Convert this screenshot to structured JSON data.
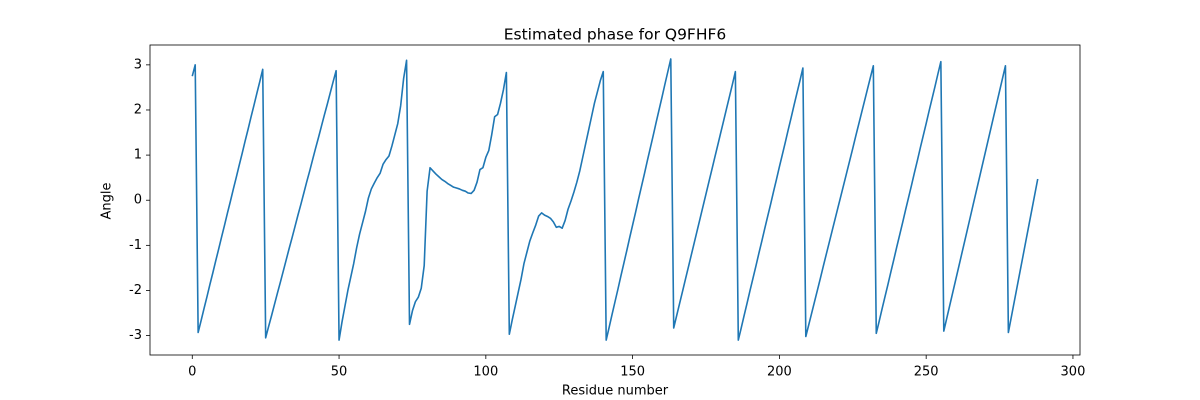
{
  "chart_data": {
    "type": "line",
    "title": "Estimated phase for Q9FHF6",
    "x_label": "Residue number",
    "y_label": "Angle",
    "color": "#1f77b4",
    "x": [
      0,
      1,
      2,
      3,
      4,
      5,
      6,
      7,
      8,
      9,
      10,
      11,
      12,
      13,
      14,
      15,
      16,
      17,
      18,
      19,
      20,
      21,
      22,
      23,
      24,
      25,
      26,
      27,
      28,
      29,
      30,
      31,
      32,
      33,
      34,
      35,
      36,
      37,
      38,
      39,
      40,
      41,
      42,
      43,
      44,
      45,
      46,
      47,
      48,
      49,
      50,
      51,
      52,
      53,
      54,
      55,
      56,
      57,
      58,
      59,
      60,
      61,
      62,
      63,
      64,
      65,
      66,
      67,
      68,
      69,
      70,
      71,
      72,
      73,
      74,
      75,
      76,
      77,
      78,
      79,
      80,
      81,
      82,
      83,
      84,
      85,
      86,
      87,
      88,
      89,
      90,
      91,
      92,
      93,
      94,
      95,
      96,
      97,
      98,
      99,
      100,
      101,
      102,
      103,
      104,
      105,
      106,
      107,
      108,
      109,
      110,
      111,
      112,
      113,
      114,
      115,
      116,
      117,
      118,
      119,
      120,
      121,
      122,
      123,
      124,
      125,
      126,
      127,
      128,
      129,
      130,
      131,
      132,
      133,
      134,
      135,
      136,
      137,
      138,
      139,
      140,
      141,
      142,
      143,
      144,
      145,
      146,
      147,
      148,
      149,
      150,
      151,
      152,
      153,
      154,
      155,
      156,
      157,
      158,
      159,
      160,
      161,
      162,
      163,
      164,
      165,
      166,
      167,
      168,
      169,
      170,
      171,
      172,
      173,
      174,
      175,
      176,
      177,
      178,
      179,
      180,
      181,
      182,
      183,
      184,
      185,
      186,
      187,
      188,
      189,
      190,
      191,
      192,
      193,
      194,
      195,
      196,
      197,
      198,
      199,
      200,
      201,
      202,
      203,
      204,
      205,
      206,
      207,
      208,
      209,
      210,
      211,
      212,
      213,
      214,
      215,
      216,
      217,
      218,
      219,
      220,
      221,
      222,
      223,
      224,
      225,
      226,
      227,
      228,
      229,
      230,
      231,
      232,
      233,
      234,
      235,
      236,
      237,
      238,
      239,
      240,
      241,
      242,
      243,
      244,
      245,
      246,
      247,
      248,
      249,
      250,
      251,
      252,
      253,
      254,
      255,
      256,
      257,
      258,
      259,
      260,
      261,
      262,
      263,
      264,
      265,
      266,
      267,
      268,
      269,
      270,
      271,
      272,
      273,
      274,
      275,
      276,
      277,
      278,
      279,
      280,
      281,
      282,
      283,
      284,
      285,
      286,
      287,
      288
    ],
    "values": [
      2.75,
      3.0,
      -2.93,
      -2.67,
      -2.4,
      -2.14,
      -1.87,
      -1.61,
      -1.34,
      -1.08,
      -0.81,
      -0.55,
      -0.28,
      -0.02,
      0.25,
      0.51,
      0.78,
      1.04,
      1.31,
      1.57,
      1.84,
      2.1,
      2.37,
      2.63,
      2.9,
      -3.05,
      -2.8,
      -2.56,
      -2.31,
      -2.06,
      -1.82,
      -1.57,
      -1.32,
      -1.07,
      -0.83,
      -0.58,
      -0.33,
      -0.09,
      0.16,
      0.41,
      0.65,
      0.9,
      1.15,
      1.39,
      1.64,
      1.89,
      2.13,
      2.38,
      2.63,
      2.87,
      -3.1,
      -2.7,
      -2.35,
      -2.0,
      -1.7,
      -1.4,
      -1.05,
      -0.75,
      -0.5,
      -0.25,
      0.05,
      0.25,
      0.38,
      0.5,
      0.6,
      0.8,
      0.9,
      0.98,
      1.2,
      1.45,
      1.7,
      2.1,
      2.7,
      3.1,
      -2.75,
      -2.45,
      -2.25,
      -2.15,
      -1.95,
      -1.45,
      0.2,
      0.72,
      0.65,
      0.58,
      0.52,
      0.46,
      0.42,
      0.37,
      0.33,
      0.29,
      0.27,
      0.25,
      0.22,
      0.2,
      0.16,
      0.15,
      0.22,
      0.4,
      0.68,
      0.72,
      0.95,
      1.1,
      1.45,
      1.85,
      1.9,
      2.15,
      2.45,
      2.83,
      -2.97,
      -2.65,
      -2.35,
      -2.05,
      -1.75,
      -1.4,
      -1.15,
      -0.9,
      -0.72,
      -0.55,
      -0.35,
      -0.28,
      -0.33,
      -0.36,
      -0.4,
      -0.48,
      -0.6,
      -0.58,
      -0.62,
      -0.45,
      -0.2,
      -0.02,
      0.18,
      0.4,
      0.65,
      0.95,
      1.25,
      1.55,
      1.85,
      2.15,
      2.4,
      2.65,
      2.85,
      -3.1,
      -2.82,
      -2.53,
      -2.25,
      -1.97,
      -1.68,
      -1.4,
      -1.12,
      -0.83,
      -0.55,
      -0.27,
      0.02,
      0.3,
      0.58,
      0.87,
      1.15,
      1.43,
      1.72,
      2.0,
      2.28,
      2.57,
      2.85,
      3.13,
      -2.83,
      -2.56,
      -2.29,
      -2.02,
      -1.75,
      -1.48,
      -1.21,
      -0.94,
      -0.67,
      -0.4,
      -0.13,
      0.14,
      0.41,
      0.68,
      0.95,
      1.22,
      1.49,
      1.76,
      2.03,
      2.3,
      2.57,
      2.85,
      -3.1,
      -2.83,
      -2.55,
      -2.28,
      -2.0,
      -1.73,
      -1.46,
      -1.18,
      -0.91,
      -0.63,
      -0.36,
      -0.09,
      0.19,
      0.46,
      0.74,
      1.01,
      1.28,
      1.56,
      1.83,
      2.11,
      2.38,
      2.65,
      2.93,
      -3.02,
      -2.76,
      -2.5,
      -2.24,
      -1.98,
      -1.72,
      -1.45,
      -1.19,
      -0.93,
      -0.67,
      -0.41,
      -0.15,
      0.11,
      0.37,
      0.63,
      0.89,
      1.15,
      1.42,
      1.68,
      1.94,
      2.2,
      2.46,
      2.72,
      2.98,
      -2.95,
      -2.68,
      -2.4,
      -2.13,
      -1.86,
      -1.58,
      -1.31,
      -1.03,
      -0.76,
      -0.49,
      -0.21,
      0.06,
      0.33,
      0.61,
      0.88,
      1.16,
      1.43,
      1.7,
      1.98,
      2.25,
      2.52,
      2.8,
      3.07,
      -2.9,
      -2.62,
      -2.34,
      -2.06,
      -1.78,
      -1.5,
      -1.22,
      -0.94,
      -0.66,
      -0.38,
      -0.1,
      0.18,
      0.46,
      0.74,
      1.02,
      1.3,
      1.58,
      1.86,
      2.14,
      2.42,
      2.7,
      2.98,
      -2.93,
      -2.59,
      -2.25,
      -1.91,
      -1.57,
      -1.23,
      -0.89,
      -0.55,
      -0.21,
      0.13,
      0.47
    ],
    "xlim": [
      -14.4,
      302.4
    ],
    "ylim": [
      -3.43,
      3.44
    ],
    "xticks": [
      0,
      50,
      100,
      150,
      200,
      250,
      300
    ],
    "yticks": [
      -3,
      -2,
      -1,
      0,
      1,
      2,
      3
    ]
  }
}
